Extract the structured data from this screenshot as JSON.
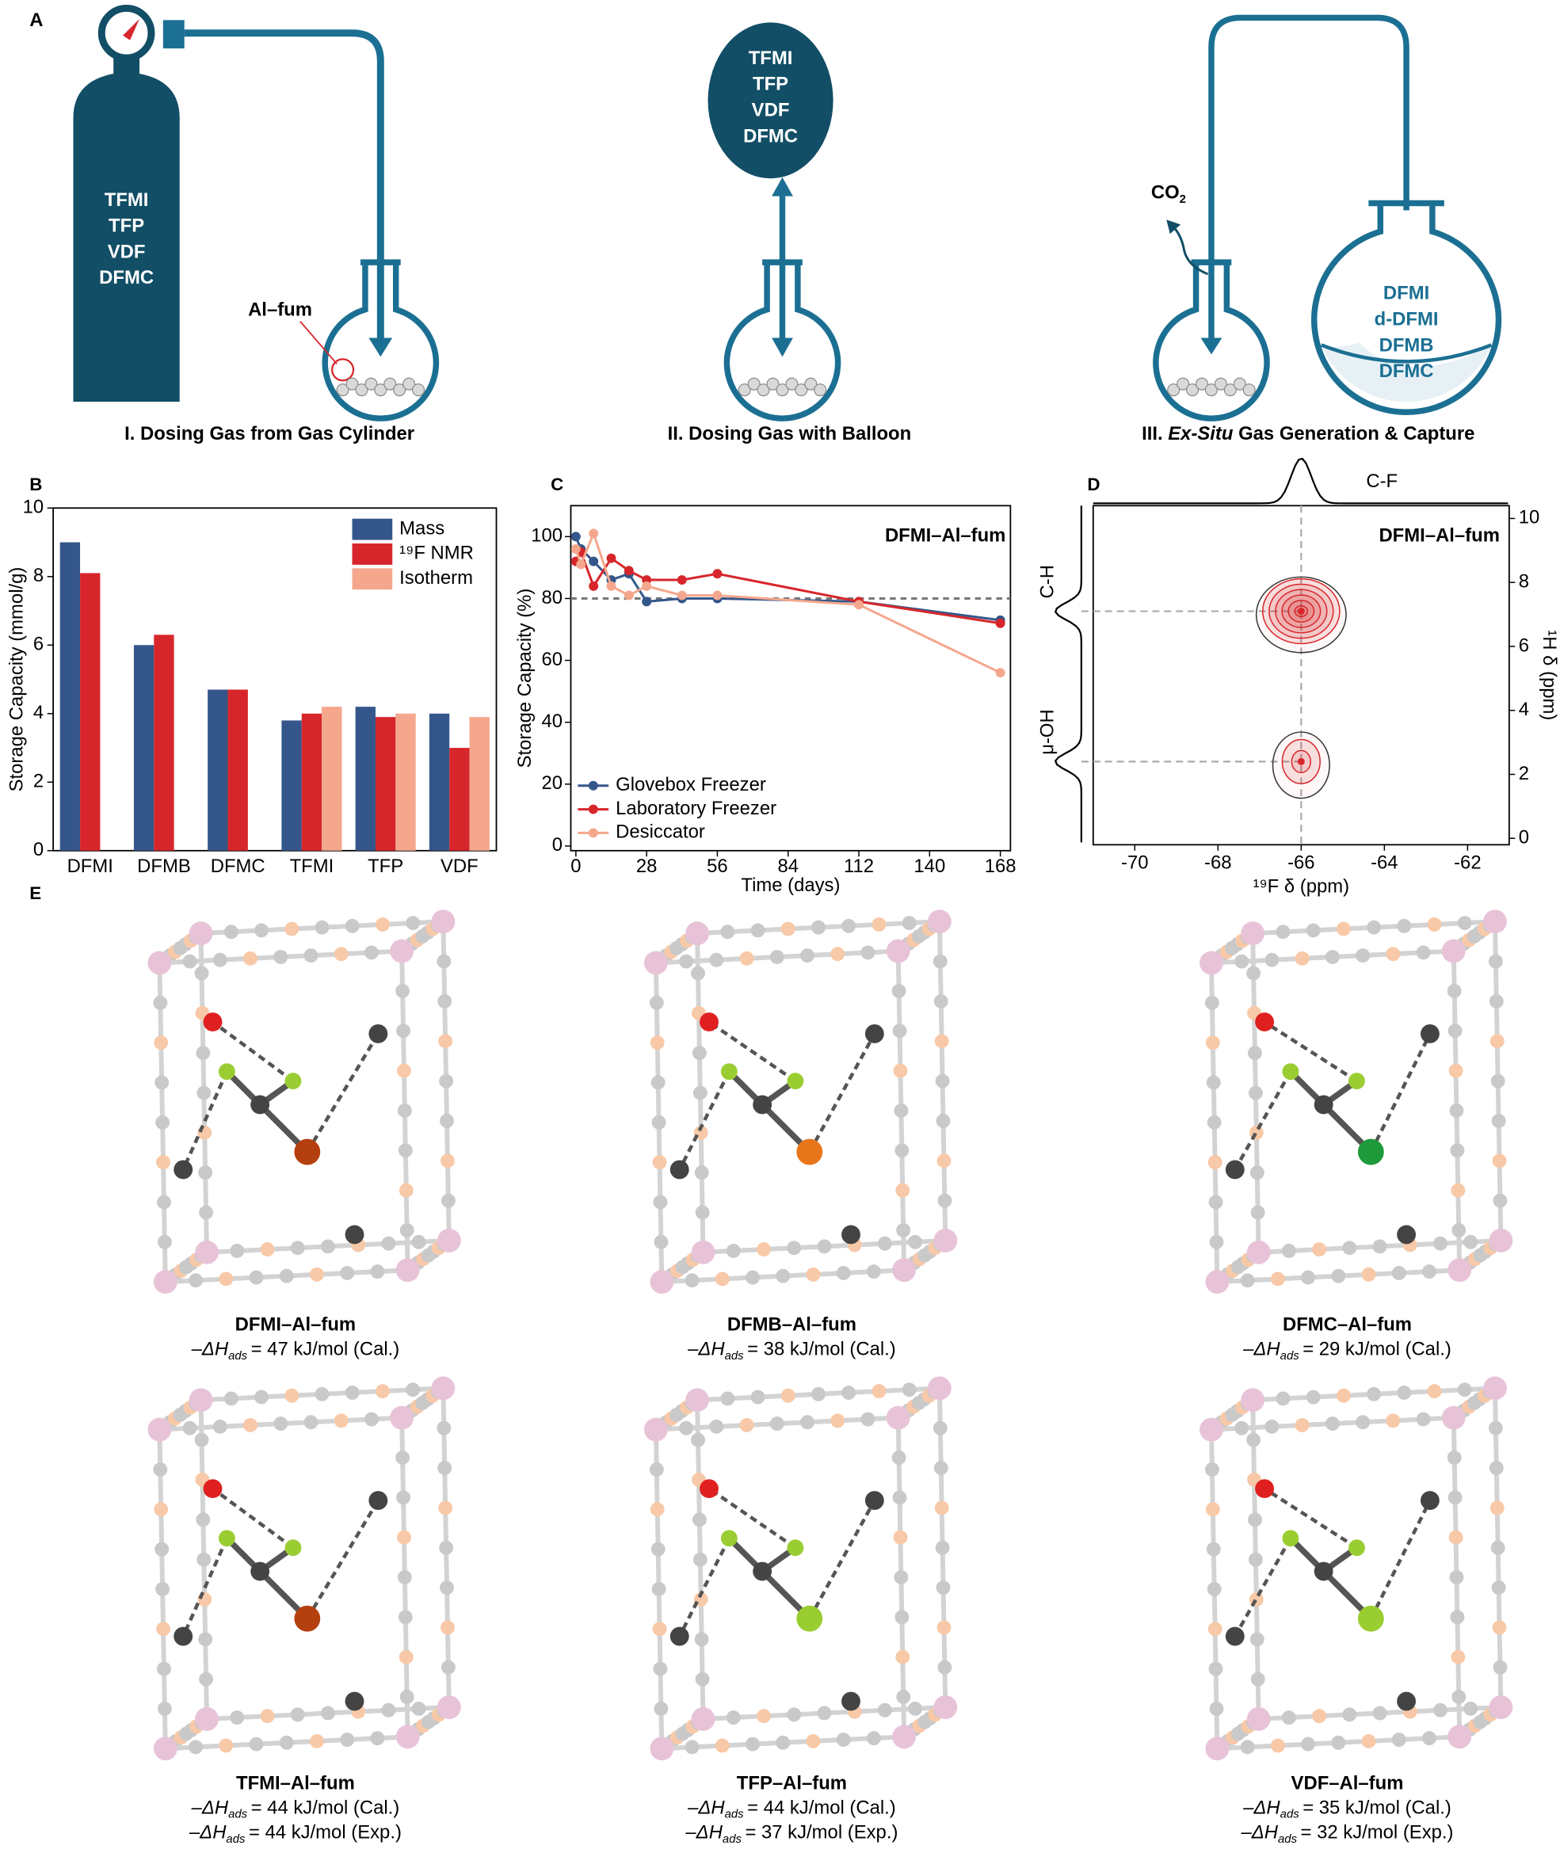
{
  "panel_labels": [
    "A",
    "B",
    "C",
    "D",
    "E"
  ],
  "panel_a": {
    "cylinder_gases": [
      "TFMI",
      "TFP",
      "VDF",
      "DFMC"
    ],
    "sample_label": "Al–fum",
    "caption_1": "I. Dosing Gas from Gas Cylinder",
    "balloon_gases": [
      "TFMI",
      "TFP",
      "VDF",
      "DFMC"
    ],
    "caption_2": "II. Dosing Gas with Balloon",
    "byproduct": "CO",
    "byproduct_subscript": "2",
    "captured_gases": [
      "DFMI",
      "d-DFMI",
      "DFMB",
      "DFMC"
    ],
    "caption_3_parts": [
      "III. ",
      "Ex-Situ",
      " Gas Generation & Capture"
    ]
  },
  "chart_data": [
    {
      "type": "bar",
      "ylabel": "Storage Capacity (mmol/g)",
      "categories": [
        "DFMI",
        "DFMB",
        "DFMC",
        "TFMI",
        "TFP",
        "VDF"
      ],
      "series": [
        {
          "name": "Mass",
          "color": "#34568b",
          "values": [
            9.0,
            6.0,
            4.7,
            3.8,
            4.2,
            4.0
          ]
        },
        {
          "name": "¹⁹F NMR",
          "color": "#d7262b",
          "values": [
            8.1,
            6.3,
            4.7,
            4.0,
            3.9,
            3.0
          ]
        },
        {
          "name": "Isotherm",
          "color": "#f4a78c",
          "values": [
            null,
            null,
            null,
            4.2,
            4.0,
            3.9
          ]
        }
      ],
      "ylim": [
        0,
        10
      ],
      "yticks": [
        0,
        2,
        4,
        6,
        8,
        10
      ],
      "legend": "upper right"
    },
    {
      "type": "line",
      "annotation": "DFMI–Al–fum",
      "xlabel": "Time (days)",
      "ylabel": "Storage Capacity (%)",
      "x": [
        0,
        2,
        7,
        14,
        21,
        28,
        42,
        56,
        112,
        168
      ],
      "series": [
        {
          "name": "Glovebox Freezer",
          "color": "#34568b",
          "values": [
            100,
            96,
            92,
            86,
            88,
            79,
            80,
            80,
            79,
            73
          ]
        },
        {
          "name": "Laboratory Freezer",
          "color": "#d7262b",
          "values": [
            92,
            95,
            84,
            93,
            89,
            86,
            86,
            88,
            79,
            72
          ]
        },
        {
          "name": "Desiccator",
          "color": "#f4a78c",
          "values": [
            96,
            91,
            101,
            84,
            81,
            84,
            81,
            81,
            78,
            56
          ]
        }
      ],
      "reference_line": 80,
      "xlim": [
        -2,
        172
      ],
      "xticks": [
        0,
        28,
        56,
        84,
        112,
        140,
        168
      ],
      "ylim": [
        -1.5,
        110
      ],
      "yticks": [
        0,
        20,
        40,
        60,
        80,
        100
      ],
      "legend": "lower left"
    },
    {
      "type": "contour",
      "annotation": "DFMI–Al–fum",
      "xlabel": "¹⁹F δ (ppm)",
      "ylabel": "¹H δ (ppm)",
      "top_label": "C-F",
      "peaks": {
        "x": [
          -66,
          -66
        ],
        "y": [
          7.1,
          2.4
        ],
        "labels": [
          "C-H",
          "μ-OH"
        ]
      },
      "color": "#d7262b",
      "xlim": [
        -71,
        -61
      ],
      "xticks": [
        -70,
        -68,
        -66,
        -64,
        -62
      ],
      "ylim": [
        -0.2,
        10.4
      ],
      "yticks": [
        0,
        2,
        4,
        6,
        8,
        10
      ]
    }
  ],
  "panel_e": {
    "structures": [
      {
        "name": "DFMI–Al–fum",
        "enthalpies": [
          {
            "prefix": "–ΔH",
            "subscript": "ads",
            "text": "= 47 kJ/mol (Cal.)"
          }
        ]
      },
      {
        "name": "DFMB–Al–fum",
        "enthalpies": [
          {
            "prefix": "–ΔH",
            "subscript": "ads",
            "text": "= 38 kJ/mol (Cal.)"
          }
        ]
      },
      {
        "name": "DFMC–Al–fum",
        "enthalpies": [
          {
            "prefix": "–ΔH",
            "subscript": "ads",
            "text": "= 29 kJ/mol (Cal.)"
          }
        ]
      },
      {
        "name": "TFMI–Al–fum",
        "enthalpies": [
          {
            "prefix": "–ΔH",
            "subscript": "ads",
            "text": "= 44 kJ/mol (Cal.)"
          },
          {
            "prefix": "–ΔH",
            "subscript": "ads",
            "text": "= 44 kJ/mol (Exp.)"
          }
        ]
      },
      {
        "name": "TFP–Al–fum",
        "enthalpies": [
          {
            "prefix": "–ΔH",
            "subscript": "ads",
            "text": "= 44 kJ/mol (Cal.)"
          },
          {
            "prefix": "–ΔH",
            "subscript": "ads",
            "text": "= 37 kJ/mol (Exp.)"
          }
        ]
      },
      {
        "name": "VDF–Al–fum",
        "enthalpies": [
          {
            "prefix": "–ΔH",
            "subscript": "ads",
            "text": "= 35 kJ/mol (Cal.)"
          },
          {
            "prefix": "–ΔH",
            "subscript": "ads",
            "text": "= 32 kJ/mol (Exp.)"
          }
        ]
      }
    ]
  }
}
